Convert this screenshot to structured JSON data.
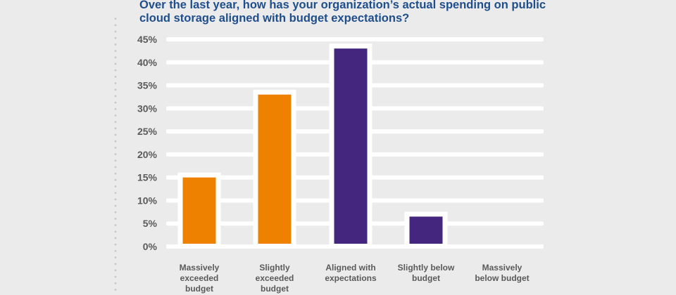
{
  "chart_data": {
    "type": "bar",
    "title": "Over the last year, how has your organization’s actual spending on public cloud storage aligned with budget expectations?",
    "xlabel": "",
    "ylabel": "",
    "categories": [
      "Massively exceeded budget",
      "Slightly exceeded budget",
      "Aligned with expectations",
      "Slightly below budget",
      "Massively below budget"
    ],
    "category_lines": [
      [
        "Massively",
        "exceeded",
        "budget"
      ],
      [
        "Slightly",
        "exceeded",
        "budget"
      ],
      [
        "Aligned with",
        "expectations"
      ],
      [
        "Slightly below",
        "budget"
      ],
      [
        "Massively",
        "below budget"
      ]
    ],
    "values": [
      15,
      33,
      43,
      6.5,
      0
    ],
    "bar_colors": [
      "#ee8100",
      "#ee8100",
      "#45267e",
      "#45267e",
      "#45267e"
    ],
    "ylim": [
      0,
      45
    ],
    "yticks": [
      0,
      5,
      10,
      15,
      20,
      25,
      30,
      35,
      40,
      45
    ],
    "ytick_labels": [
      "0%",
      "5%",
      "10%",
      "15%",
      "20%",
      "25%",
      "30%",
      "35%",
      "40%",
      "45%"
    ],
    "grid": true,
    "legend": "none"
  },
  "colors": {
    "title": "#1f4e8c",
    "background": "#ebebeb",
    "gridline": "#ffffff",
    "tick_text": "#5a5a5a"
  }
}
